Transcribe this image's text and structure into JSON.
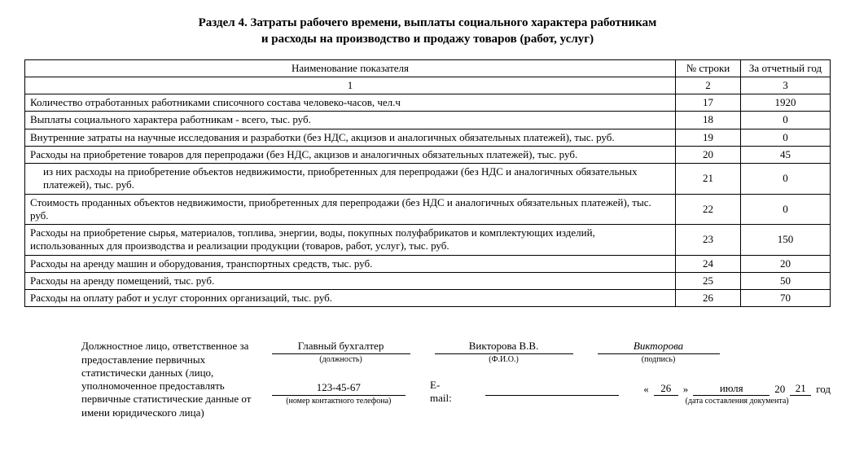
{
  "title_line1": "Раздел 4. Затраты рабочего времени, выплаты социального характера работникам",
  "title_line2": "и расходы на производство и продажу товаров (работ, услуг)",
  "headers": {
    "name": "Наименование показателя",
    "row": "№ строки",
    "value": "За отчетный год"
  },
  "num_row": {
    "name": "1",
    "row": "2",
    "value": "3"
  },
  "rows": [
    {
      "name": "Количество отработанных работниками списочного состава человеко-часов, чел.ч",
      "row": "17",
      "value": "1920",
      "indent": false
    },
    {
      "name": "Выплаты социального характера работникам - всего, тыс. руб.",
      "row": "18",
      "value": "0",
      "indent": false
    },
    {
      "name": "Внутренние затраты на научные исследования и разработки (без НДС, акцизов и аналогичных обязательных платежей), тыс. руб.",
      "row": "19",
      "value": "0",
      "indent": false
    },
    {
      "name": "Расходы на приобретение товаров для перепродажи (без НДС, акцизов и аналогичных обязательных платежей), тыс. руб.",
      "row": "20",
      "value": "45",
      "indent": false
    },
    {
      "name": "из них расходы на приобретение объектов недвижимости, приобретенных для перепродажи (без НДС и аналогичных обязательных платежей), тыс. руб.",
      "row": "21",
      "value": "0",
      "indent": true
    },
    {
      "name": "Стоимость проданных объектов недвижимости, приобретенных для перепродажи (без НДС и аналогичных обязательных платежей), тыс. руб.",
      "row": "22",
      "value": "0",
      "indent": false
    },
    {
      "name": "Расходы на приобретение сырья, материалов, топлива, энергии, воды, покупных полуфабрикатов и комплектующих изделий, использованных для производства и реализации продукции (товаров, работ, услуг), тыс. руб.",
      "row": "23",
      "value": "150",
      "indent": false
    },
    {
      "name": "Расходы на аренду машин и оборудования, транспортных средств, тыс. руб.",
      "row": "24",
      "value": "20",
      "indent": false
    },
    {
      "name": "Расходы на аренду помещений, тыс. руб.",
      "row": "25",
      "value": "50",
      "indent": false
    },
    {
      "name": "Расходы на оплату работ и услуг сторонних организаций, тыс. руб.",
      "row": "26",
      "value": "70",
      "indent": false
    }
  ],
  "sig": {
    "responsible": "Должностное лицо, ответственное за предоставление первичных статистически данных (лицо, уполномоченное предоставлять первичные статистические данные от имени юридического лица)",
    "position": {
      "value": "Главный бухгалтер",
      "caption": "(должность)"
    },
    "fio": {
      "value": "Викторова В.В.",
      "caption": "(Ф.И.О.)"
    },
    "signature": {
      "value": "Викторова",
      "caption": "(подпись)"
    },
    "phone": {
      "value": "123-45-67",
      "caption": "(номер контактного телефона)"
    },
    "email": {
      "label": "E-mail:",
      "value": ""
    },
    "date": {
      "open": "«",
      "close": "»",
      "day": "26",
      "month": "июля",
      "century": "20",
      "yy": "21",
      "year_word": "год",
      "caption": "(дата составления документа)"
    }
  }
}
